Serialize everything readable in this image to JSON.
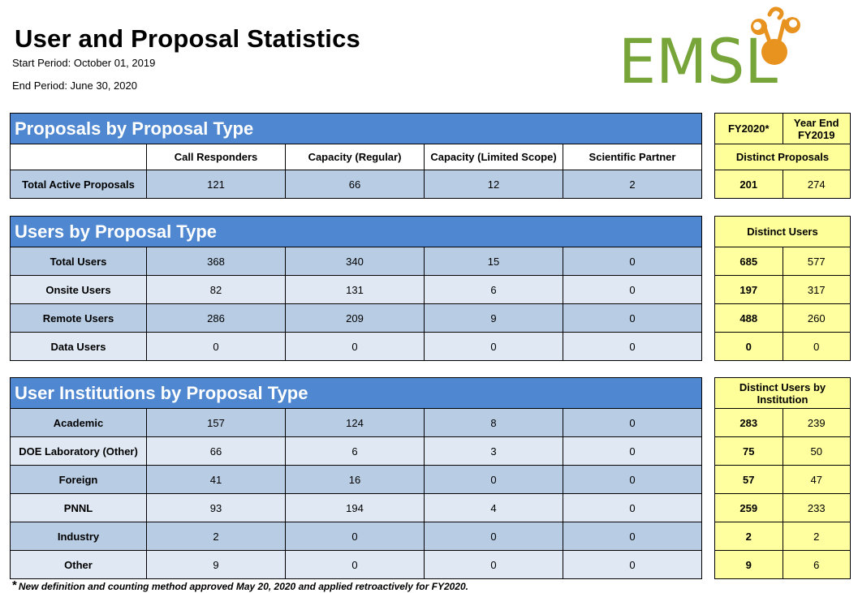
{
  "header": {
    "title": "User and Proposal Statistics",
    "start_period": "Start Period: October 01, 2019",
    "end_period": "End Period: June 30, 2020",
    "logo_text": "EMSL",
    "logo_color": "#77a53a",
    "logo_accent_color": "#e8921f"
  },
  "columns": [
    "Call Responders",
    "Capacity (Regular)",
    "Capacity (Limited Scope)",
    "Scientific Partner"
  ],
  "proposals": {
    "title": "Proposals by Proposal Type",
    "rows": [
      {
        "label": "Total Active Proposals",
        "values": [
          "121",
          "66",
          "12",
          "2"
        ]
      }
    ]
  },
  "users": {
    "title": "Users by Proposal Type",
    "rows": [
      {
        "label": "Total Users",
        "values": [
          "368",
          "340",
          "15",
          "0"
        ]
      },
      {
        "label": "Onsite Users",
        "values": [
          "82",
          "131",
          "6",
          "0"
        ]
      },
      {
        "label": "Remote Users",
        "values": [
          "286",
          "209",
          "9",
          "0"
        ]
      },
      {
        "label": "Data Users",
        "values": [
          "0",
          "0",
          "0",
          "0"
        ]
      }
    ]
  },
  "institutions": {
    "title": "User Institutions by Proposal Type",
    "rows": [
      {
        "label": "Academic",
        "values": [
          "157",
          "124",
          "8",
          "0"
        ]
      },
      {
        "label": "DOE Laboratory (Other)",
        "values": [
          "66",
          "6",
          "3",
          "0"
        ]
      },
      {
        "label": "Foreign",
        "values": [
          "41",
          "16",
          "0",
          "0"
        ]
      },
      {
        "label": "PNNL",
        "values": [
          "93",
          "194",
          "4",
          "0"
        ]
      },
      {
        "label": "Industry",
        "values": [
          "2",
          "0",
          "0",
          "0"
        ]
      },
      {
        "label": "Other",
        "values": [
          "9",
          "0",
          "0",
          "0"
        ]
      }
    ]
  },
  "side": {
    "col_fy2020": "FY2020*",
    "col_fy2019": "Year End FY2019",
    "proposals_header": "Distinct Proposals",
    "proposals": [
      [
        "201",
        "274"
      ]
    ],
    "users_header": "Distinct Users",
    "users": [
      [
        "685",
        "577"
      ],
      [
        "197",
        "317"
      ],
      [
        "488",
        "260"
      ],
      [
        "0",
        "0"
      ]
    ],
    "institutions_header": "Distinct Users by Institution",
    "institutions": [
      [
        "283",
        "239"
      ],
      [
        "75",
        "50"
      ],
      [
        "57",
        "47"
      ],
      [
        "259",
        "233"
      ],
      [
        "2",
        "2"
      ],
      [
        "9",
        "6"
      ]
    ]
  },
  "footnote": {
    "star": "*",
    "text": "New definition and counting method approved May 20, 2020 and applied retroactively for FY2020."
  }
}
